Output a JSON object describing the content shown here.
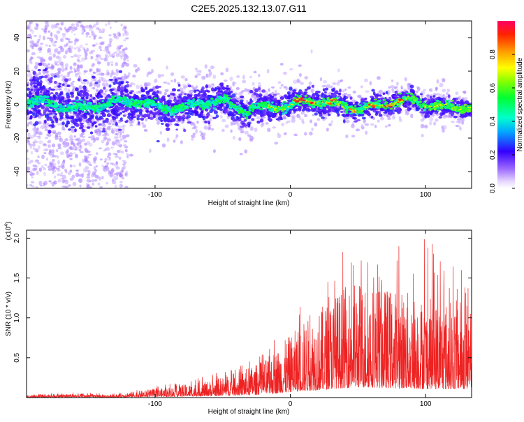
{
  "title": "C2E5.2025.132.13.07.G11",
  "colors": {
    "signal_red": "#ee2222",
    "band_core": "#22dd88",
    "band_mid": "#6633ff",
    "band_outer": "#ccb3ff",
    "peak": "#ff3333"
  },
  "chart_data": [
    {
      "type": "heatmap",
      "name": "spectrogram",
      "xlabel": "Height of straight line (km)",
      "ylabel": "Frequency (Hz)",
      "xlim": [
        -195,
        134
      ],
      "ylim": [
        -50,
        50
      ],
      "xticks": [
        -100,
        0,
        100
      ],
      "xtick_labels": [
        "-100",
        "0",
        "100"
      ],
      "yticks": [
        -40,
        -20,
        0,
        20,
        40
      ],
      "ytick_labels": [
        "-40",
        "-20",
        "0",
        "20",
        "40"
      ],
      "grid": false,
      "colorbar": {
        "label": "Normalized spectral amplitude",
        "range": [
          0,
          1
        ],
        "ticks": [
          0.0,
          0.2,
          0.4,
          0.6,
          0.8
        ],
        "tick_labels": [
          "0.0",
          "0.2",
          "0.4",
          "0.6",
          "0.8"
        ],
        "colormap": "rainbow"
      },
      "features": {
        "band_center_hz": 0,
        "band_halfwidth_hz_left": 10,
        "band_halfwidth_hz_right": 4,
        "scatter_region_km": [
          -195,
          -120
        ],
        "scatter_extent_hz": 50,
        "peak_amplitude_positions_km": [
          5,
          8,
          15,
          30,
          45,
          60,
          72,
          80
        ],
        "dip_near_km": -35
      }
    },
    {
      "type": "line",
      "name": "snr",
      "xlabel": "Height of straight line (km)",
      "ylabel": "SNR (10 * v/v)",
      "scale_note": "(x10^4)",
      "xlim": [
        -195,
        134
      ],
      "ylim": [
        0,
        2.1
      ],
      "xticks": [
        -100,
        0,
        100
      ],
      "xtick_labels": [
        "-100",
        "0",
        "100"
      ],
      "yticks": [
        0.5,
        1.0,
        1.5,
        2.0
      ],
      "ytick_labels": [
        "0.5",
        "1.0",
        "1.5",
        "2.0"
      ],
      "grid": false,
      "series": [
        {
          "color": "#ee2222",
          "envelope_x": [
            -195,
            -160,
            -130,
            -120,
            -100,
            -80,
            -60,
            -40,
            -20,
            -10,
            0,
            10,
            20,
            30,
            40,
            50,
            60,
            70,
            80,
            90,
            100,
            110,
            120,
            134
          ],
          "envelope_mean": [
            0.02,
            0.03,
            0.02,
            0.04,
            0.06,
            0.09,
            0.12,
            0.18,
            0.26,
            0.35,
            0.45,
            0.55,
            0.62,
            0.72,
            0.8,
            0.85,
            0.84,
            0.8,
            0.78,
            0.76,
            0.72,
            0.7,
            0.7,
            0.72
          ],
          "envelope_peak": [
            0.04,
            0.07,
            0.05,
            0.1,
            0.14,
            0.2,
            0.3,
            0.38,
            0.55,
            0.8,
            1.05,
            1.2,
            1.45,
            1.7,
            1.85,
            1.7,
            1.9,
            1.75,
            2.05,
            1.8,
            2.05,
            1.85,
            1.7,
            1.75
          ]
        }
      ]
    }
  ]
}
